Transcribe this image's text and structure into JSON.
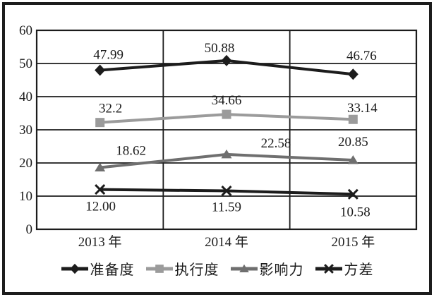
{
  "chart_data": {
    "type": "line",
    "categories": [
      "2013 年",
      "2014 年",
      "2015 年"
    ],
    "series": [
      {
        "name": "准备度",
        "marker": "diamond",
        "color": "#1c1c1c",
        "values": [
          47.99,
          50.88,
          46.76
        ],
        "labels": [
          "47.99",
          "50.88",
          "46.76"
        ],
        "label_position": "above"
      },
      {
        "name": "执行度",
        "marker": "square",
        "color": "#9b9b9b",
        "values": [
          32.2,
          34.66,
          33.14
        ],
        "labels": [
          "32.2",
          "34.66",
          "33.14"
        ],
        "label_position": "above"
      },
      {
        "name": "影响力",
        "marker": "triangle",
        "color": "#6f6f6f",
        "values": [
          18.62,
          22.58,
          20.85
        ],
        "labels": [
          "18.62",
          "22.58",
          "20.85"
        ],
        "label_position": "above"
      },
      {
        "name": "方差",
        "marker": "x",
        "color": "#1c1c1c",
        "values": [
          12.0,
          11.59,
          10.58
        ],
        "labels": [
          "12.00",
          "11.59",
          "10.58"
        ],
        "label_position": "below"
      }
    ],
    "y_ticks": [
      0,
      10,
      20,
      30,
      40,
      50,
      60
    ],
    "ylim": [
      0,
      60
    ],
    "grid": true,
    "legend_position": "bottom",
    "colors": {
      "ink": "#1c1c1c",
      "background": "#ffffff"
    }
  }
}
